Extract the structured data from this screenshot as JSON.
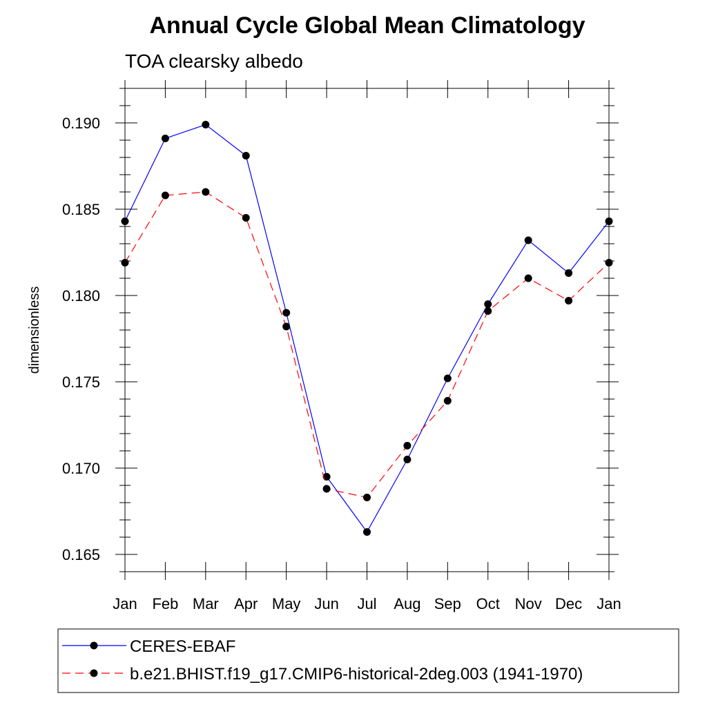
{
  "chart_data": {
    "type": "line",
    "title": "Annual Cycle Global Mean Climatology",
    "subtitle": "TOA clearsky albedo",
    "ylabel": "dimensionless",
    "xlabel": "",
    "categories": [
      "Jan",
      "Feb",
      "Mar",
      "Apr",
      "May",
      "Jun",
      "Jul",
      "Aug",
      "Sep",
      "Oct",
      "Nov",
      "Dec",
      "Jan"
    ],
    "ylim": [
      0.164,
      0.192
    ],
    "yticks": [
      0.165,
      0.17,
      0.175,
      0.18,
      0.185,
      0.19
    ],
    "ytick_labels": [
      "0.165",
      "0.170",
      "0.175",
      "0.180",
      "0.185",
      "0.190"
    ],
    "series": [
      {
        "name": "CERES-EBAF",
        "color": "#0000ff",
        "dash": "solid",
        "values": [
          0.1843,
          0.1891,
          0.1899,
          0.1881,
          0.179,
          0.1695,
          0.1663,
          0.1705,
          0.1752,
          0.1795,
          0.1832,
          0.1813,
          0.1843
        ]
      },
      {
        "name": "b.e21.BHIST.f19_g17.CMIP6-historical-2deg.003 (1941-1970)",
        "color": "#ff0000",
        "dash": "dashed",
        "values": [
          0.1819,
          0.1858,
          0.186,
          0.1845,
          0.1782,
          0.1688,
          0.1683,
          0.1713,
          0.1739,
          0.1791,
          0.181,
          0.1797,
          0.1819
        ]
      }
    ],
    "legend_position": "bottom",
    "grid": false
  }
}
